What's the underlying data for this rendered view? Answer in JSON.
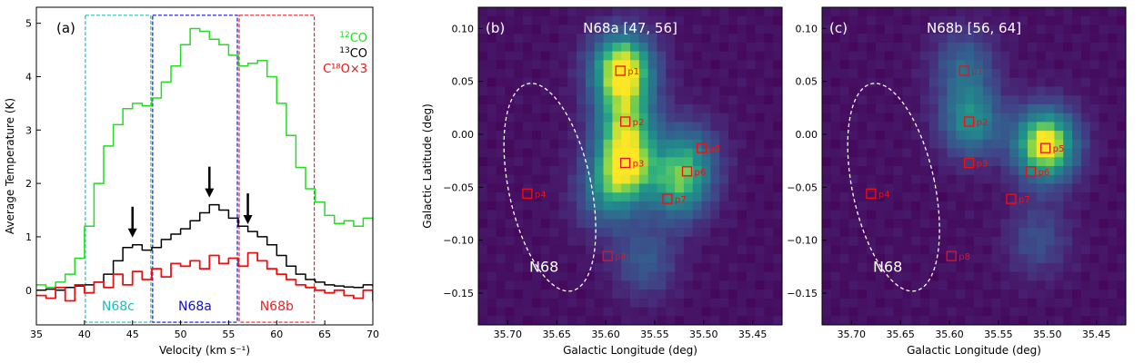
{
  "chart_data": [
    {
      "type": "line",
      "panel_label": "(a)",
      "xlabel": "Velocity (km s⁻¹)",
      "ylabel": "Average Temperature (K)",
      "xlim": [
        35,
        70
      ],
      "ylim": [
        -0.65,
        5.3
      ],
      "xticks": [
        35,
        40,
        45,
        50,
        55,
        60,
        65,
        70
      ],
      "yticks": [
        0,
        1,
        2,
        3,
        4,
        5
      ],
      "legend_position": "top-right",
      "series": [
        {
          "name_prefix": "12",
          "name_suffix": "CO",
          "color": "#22dd22",
          "x": [
            35,
            36,
            37,
            38,
            39,
            40,
            41,
            42,
            43,
            44,
            45,
            46,
            47,
            48,
            49,
            50,
            51,
            52,
            53,
            54,
            55,
            56,
            57,
            58,
            59,
            60,
            61,
            62,
            63,
            64,
            65,
            66,
            67,
            68,
            69,
            70
          ],
          "y": [
            0.1,
            0.05,
            0.15,
            0.3,
            0.6,
            1.2,
            2.0,
            2.7,
            3.1,
            3.4,
            3.5,
            3.45,
            3.6,
            3.9,
            4.2,
            4.6,
            4.9,
            4.85,
            4.7,
            4.6,
            4.4,
            4.2,
            4.25,
            4.3,
            4.0,
            3.5,
            2.9,
            2.3,
            1.9,
            1.65,
            1.4,
            1.25,
            1.3,
            1.2,
            1.35,
            1.3
          ]
        },
        {
          "name_prefix": "13",
          "name_suffix": "CO",
          "color": "#000000",
          "x": [
            35,
            36,
            37,
            38,
            39,
            40,
            41,
            42,
            43,
            44,
            45,
            46,
            47,
            48,
            49,
            50,
            51,
            52,
            53,
            54,
            55,
            56,
            57,
            58,
            59,
            60,
            61,
            62,
            63,
            64,
            65,
            66,
            67,
            68,
            69,
            70
          ],
          "y": [
            0.0,
            0.02,
            0.0,
            0.05,
            0.08,
            0.1,
            0.15,
            0.3,
            0.55,
            0.8,
            0.85,
            0.75,
            0.8,
            0.95,
            1.05,
            1.15,
            1.3,
            1.45,
            1.6,
            1.5,
            1.35,
            1.2,
            1.1,
            1.0,
            0.85,
            0.65,
            0.45,
            0.3,
            0.2,
            0.15,
            0.1,
            0.08,
            0.06,
            0.05,
            0.1,
            0.05
          ]
        },
        {
          "name_prefix": "",
          "name_suffix": "C¹⁸O×3",
          "color": "#ee1111",
          "x": [
            35,
            36,
            37,
            38,
            39,
            40,
            41,
            42,
            43,
            44,
            45,
            46,
            47,
            48,
            49,
            50,
            51,
            52,
            53,
            54,
            55,
            56,
            57,
            58,
            59,
            60,
            61,
            62,
            63,
            64,
            65,
            66,
            67,
            68,
            69,
            70
          ],
          "y": [
            -0.1,
            -0.15,
            0.05,
            -0.2,
            0.1,
            -0.05,
            0.15,
            0.05,
            0.3,
            0.1,
            0.35,
            0.2,
            0.4,
            0.25,
            0.5,
            0.45,
            0.55,
            0.4,
            0.65,
            0.5,
            0.6,
            0.45,
            0.7,
            0.55,
            0.4,
            0.3,
            0.2,
            0.1,
            0.05,
            0.0,
            -0.05,
            0.0,
            -0.1,
            -0.15,
            0.0,
            -0.2
          ]
        }
      ],
      "arrows_at_velocity": [
        45,
        53,
        57
      ],
      "ranges": [
        {
          "label": "N68c",
          "from": 40,
          "to": 47,
          "color": "#22bbbb"
        },
        {
          "label": "N68a",
          "from": 47,
          "to": 56,
          "color": "#1111cc"
        },
        {
          "label": "N68b",
          "from": 56,
          "to": 64,
          "color": "#ee2222"
        }
      ]
    },
    {
      "type": "heatmap",
      "panel_label": "(b)",
      "title": "N68a [47, 56]",
      "xlabel": "Galactic Longitude (deg)",
      "ylabel": "Galactic Latitude (deg)",
      "xlim": [
        35.73,
        35.42
      ],
      "ylim": [
        -0.18,
        0.12
      ],
      "xticks": [
        35.7,
        35.65,
        35.6,
        35.55,
        35.5,
        35.45
      ],
      "yticks": [
        0.1,
        0.05,
        0.0,
        -0.05,
        -0.1,
        -0.15
      ],
      "xtick_labels": [
        "35.70",
        "35.65",
        "35.60",
        "35.55",
        "35.50",
        "35.45"
      ],
      "ytick_labels": [
        "0.10",
        "0.05",
        "0.00",
        "−0.05",
        "−0.10",
        "−0.15"
      ],
      "colormap": "viridis",
      "ellipse": {
        "label": "N68",
        "l": 35.657,
        "b": -0.05,
        "semi_l": 0.042,
        "semi_b": 0.1
      },
      "sources": [
        {
          "name": "p1",
          "l": 35.585,
          "b": 0.06
        },
        {
          "name": "p2",
          "l": 35.58,
          "b": 0.012
        },
        {
          "name": "p3",
          "l": 35.58,
          "b": -0.027
        },
        {
          "name": "p4",
          "l": 35.68,
          "b": -0.056
        },
        {
          "name": "p5",
          "l": 35.502,
          "b": -0.013
        },
        {
          "name": "p6",
          "l": 35.517,
          "b": -0.035
        },
        {
          "name": "p7",
          "l": 35.537,
          "b": -0.061
        },
        {
          "name": "p8",
          "l": 35.598,
          "b": -0.115
        }
      ],
      "emission_peaks": [
        {
          "l": 35.583,
          "b": 0.062,
          "amp": 1.0
        },
        {
          "l": 35.58,
          "b": 0.012,
          "amp": 0.6
        },
        {
          "l": 35.58,
          "b": -0.03,
          "amp": 0.8
        },
        {
          "l": 35.525,
          "b": -0.05,
          "amp": 0.55
        },
        {
          "l": 35.515,
          "b": -0.02,
          "amp": 0.4
        },
        {
          "l": 35.6,
          "b": -0.06,
          "amp": 0.35
        },
        {
          "l": 35.56,
          "b": -0.12,
          "amp": 0.3
        }
      ]
    },
    {
      "type": "heatmap",
      "panel_label": "(c)",
      "title": "N68b [56, 64]",
      "xlabel": "Galactic Longitude (deg)",
      "ylabel": "",
      "xlim": [
        35.73,
        35.42
      ],
      "ylim": [
        -0.18,
        0.12
      ],
      "xticks": [
        35.7,
        35.65,
        35.6,
        35.55,
        35.5,
        35.45
      ],
      "yticks": [
        0.1,
        0.05,
        0.0,
        -0.05,
        -0.1,
        -0.15
      ],
      "xtick_labels": [
        "35.70",
        "35.65",
        "35.60",
        "35.55",
        "35.50",
        "35.45"
      ],
      "ytick_labels": [
        "0.10",
        "0.05",
        "0.00",
        "−0.05",
        "−0.10",
        "−0.15"
      ],
      "colormap": "viridis",
      "ellipse": {
        "label": "N68",
        "l": 35.657,
        "b": -0.05,
        "semi_l": 0.042,
        "semi_b": 0.1
      },
      "sources": [
        {
          "name": "p1",
          "l": 35.585,
          "b": 0.06
        },
        {
          "name": "p2",
          "l": 35.58,
          "b": 0.012
        },
        {
          "name": "p3",
          "l": 35.58,
          "b": -0.027
        },
        {
          "name": "p4",
          "l": 35.68,
          "b": -0.056
        },
        {
          "name": "p5",
          "l": 35.502,
          "b": -0.013
        },
        {
          "name": "p6",
          "l": 35.517,
          "b": -0.035
        },
        {
          "name": "p7",
          "l": 35.537,
          "b": -0.061
        },
        {
          "name": "p8",
          "l": 35.598,
          "b": -0.115
        }
      ],
      "emission_peaks": [
        {
          "l": 35.502,
          "b": -0.01,
          "amp": 1.0
        },
        {
          "l": 35.578,
          "b": 0.012,
          "amp": 0.55
        },
        {
          "l": 35.585,
          "b": 0.065,
          "amp": 0.35
        },
        {
          "l": 35.51,
          "b": -0.1,
          "amp": 0.25
        }
      ]
    }
  ]
}
